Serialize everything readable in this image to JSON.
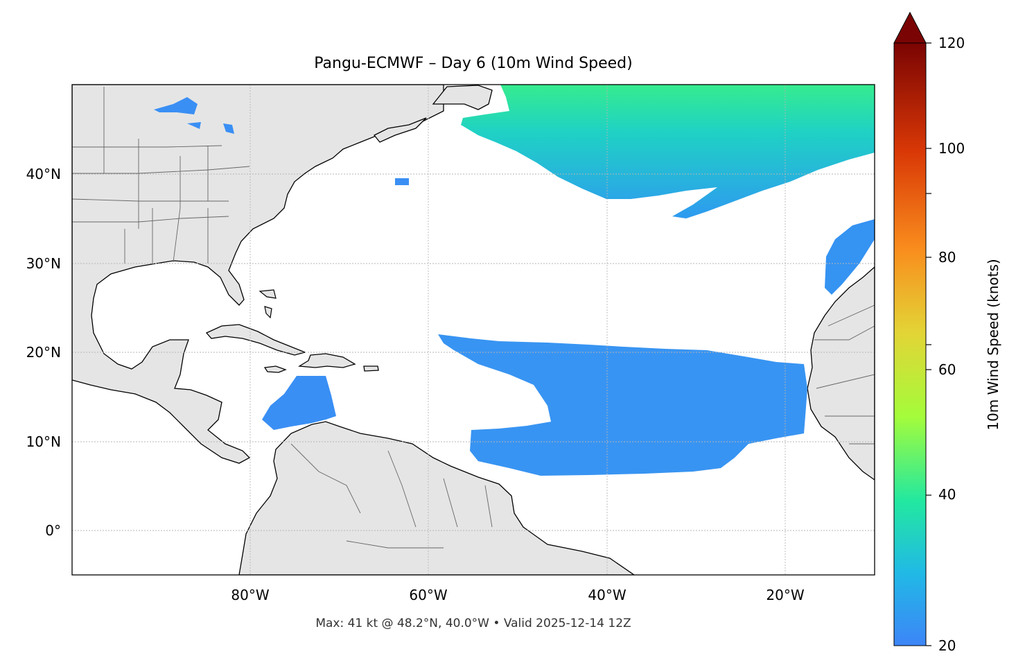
{
  "title": "Pangu-ECMWF – Day 6 (10m Wind Speed)",
  "footer": "Max: 41 kt @ 48.2°N, 40.0°W • Valid 2025-12-14 12Z",
  "map": {
    "lat_labels": [
      "40°N",
      "30°N",
      "20°N",
      "10°N",
      "0°"
    ],
    "lon_labels": [
      "80°W",
      "60°W",
      "40°W",
      "20°W"
    ],
    "land_color": "#e5e5e5",
    "ocean_color": "#ffffff"
  },
  "colorbar": {
    "label": "10m Wind Speed (knots)",
    "ticks": [
      "20",
      "40",
      "60",
      "80",
      "100",
      "120"
    ],
    "colors": [
      "#3d85f7",
      "#21b9e6",
      "#22e8a0",
      "#a4fc3b",
      "#e3d436",
      "#f98c1d",
      "#d93806",
      "#7a0403"
    ]
  }
}
